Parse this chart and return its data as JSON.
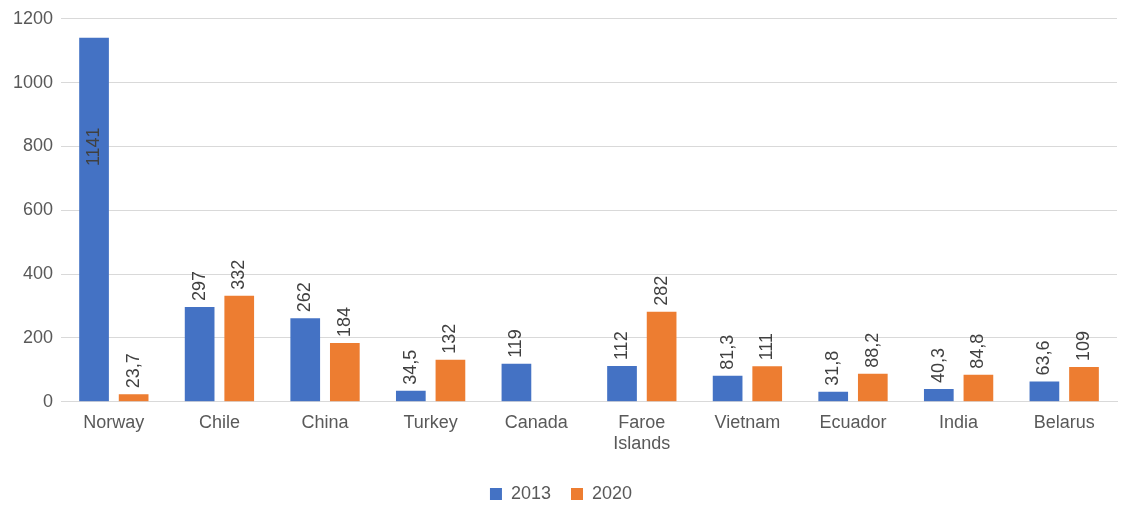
{
  "chart_data": {
    "type": "bar",
    "categories": [
      "Norway",
      "Chile",
      "China",
      "Turkey",
      "Canada",
      "Faroe Islands",
      "Vietnam",
      "Ecuador",
      "India",
      "Belarus"
    ],
    "series": [
      {
        "name": "2013",
        "color": "#4472c4",
        "values": [
          1141,
          297,
          262,
          34.5,
          119,
          112,
          81.3,
          31.8,
          40.3,
          63.6
        ],
        "value_labels": [
          "1141",
          "297",
          "262",
          "34,5",
          "119",
          "112",
          "81,3",
          "31,8",
          "40,3",
          "63,6"
        ]
      },
      {
        "name": "2020",
        "color": "#ed7d31",
        "values": [
          23.7,
          332,
          184,
          132,
          null,
          282,
          111,
          88.2,
          84.8,
          109
        ],
        "value_labels": [
          "23,7",
          "332",
          "184",
          "132",
          null,
          "282",
          "111",
          "88,2",
          "84,8",
          "109"
        ]
      }
    ],
    "ylim": [
      0,
      1200
    ],
    "yticks": [
      0,
      200,
      400,
      600,
      800,
      1000,
      1200
    ],
    "grid": "y",
    "legend": "bottom"
  }
}
